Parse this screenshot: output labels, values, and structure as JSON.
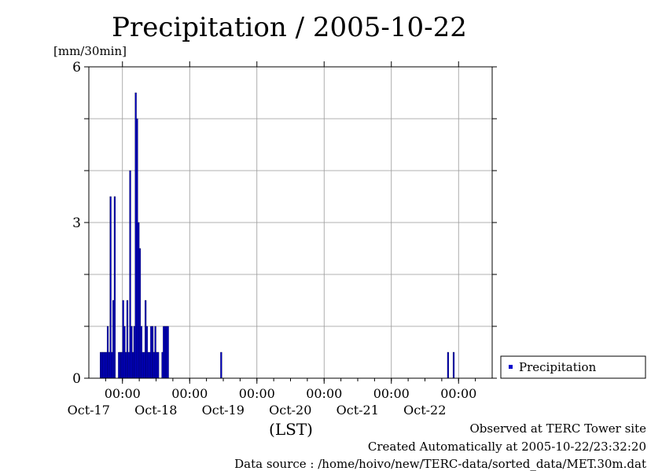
{
  "chart_data": {
    "type": "bar",
    "title": "Precipitation / 2005-10-22",
    "ylabel": "[mm/30min]",
    "xlabel": "(LST)",
    "ylim": [
      0,
      6
    ],
    "yticks": [
      0,
      3,
      6
    ],
    "x_start": "2005-10-16T12:00",
    "x_end": "2005-10-22T12:00",
    "xticks": [
      {
        "time": "2005-10-17T00:00",
        "time_label": "00:00",
        "date_label": "Oct-17"
      },
      {
        "time": "2005-10-18T00:00",
        "time_label": "00:00",
        "date_label": "Oct-18"
      },
      {
        "time": "2005-10-19T00:00",
        "time_label": "00:00",
        "date_label": "Oct-19"
      },
      {
        "time": "2005-10-20T00:00",
        "time_label": "00:00",
        "date_label": "Oct-20"
      },
      {
        "time": "2005-10-21T00:00",
        "time_label": "00:00",
        "date_label": "Oct-21"
      },
      {
        "time": "2005-10-22T00:00",
        "time_label": "00:00",
        "date_label": "Oct-22"
      }
    ],
    "grid": true,
    "legend_position": "right",
    "series": [
      {
        "name": "Precipitation",
        "color": "#0000cc",
        "points": [
          [
            "2005-10-16T16:00",
            0.5
          ],
          [
            "2005-10-16T16:30",
            0.5
          ],
          [
            "2005-10-16T17:00",
            0.5
          ],
          [
            "2005-10-16T17:30",
            0.5
          ],
          [
            "2005-10-16T18:00",
            0.5
          ],
          [
            "2005-10-16T18:30",
            1.0
          ],
          [
            "2005-10-16T19:00",
            0.5
          ],
          [
            "2005-10-16T19:30",
            3.5
          ],
          [
            "2005-10-16T20:00",
            0.5
          ],
          [
            "2005-10-16T20:30",
            1.5
          ],
          [
            "2005-10-16T21:00",
            3.5
          ],
          [
            "2005-10-16T22:30",
            0.5
          ],
          [
            "2005-10-16T23:00",
            0.5
          ],
          [
            "2005-10-16T23:30",
            0.5
          ],
          [
            "2005-10-17T00:00",
            1.5
          ],
          [
            "2005-10-17T00:30",
            1.0
          ],
          [
            "2005-10-17T01:00",
            0.5
          ],
          [
            "2005-10-17T01:30",
            1.5
          ],
          [
            "2005-10-17T02:00",
            0.5
          ],
          [
            "2005-10-17T02:30",
            4.0
          ],
          [
            "2005-10-17T03:00",
            1.0
          ],
          [
            "2005-10-17T03:30",
            0.5
          ],
          [
            "2005-10-17T04:00",
            1.0
          ],
          [
            "2005-10-17T04:30",
            5.5
          ],
          [
            "2005-10-17T05:00",
            5.0
          ],
          [
            "2005-10-17T05:30",
            3.0
          ],
          [
            "2005-10-17T06:00",
            2.5
          ],
          [
            "2005-10-17T06:30",
            1.0
          ],
          [
            "2005-10-17T07:00",
            0.5
          ],
          [
            "2005-10-17T07:30",
            0.5
          ],
          [
            "2005-10-17T08:00",
            1.5
          ],
          [
            "2005-10-17T08:30",
            1.0
          ],
          [
            "2005-10-17T09:00",
            0.5
          ],
          [
            "2005-10-17T09:30",
            0.5
          ],
          [
            "2005-10-17T10:00",
            1.0
          ],
          [
            "2005-10-17T10:30",
            1.0
          ],
          [
            "2005-10-17T11:00",
            0.5
          ],
          [
            "2005-10-17T11:30",
            1.0
          ],
          [
            "2005-10-17T12:00",
            0.5
          ],
          [
            "2005-10-17T12:30",
            0.5
          ],
          [
            "2005-10-17T14:00",
            0.5
          ],
          [
            "2005-10-17T14:30",
            1.0
          ],
          [
            "2005-10-17T15:00",
            1.0
          ],
          [
            "2005-10-17T15:30",
            1.0
          ],
          [
            "2005-10-17T16:00",
            1.0
          ],
          [
            "2005-10-18T11:00",
            0.5
          ],
          [
            "2005-10-21T20:00",
            0.5
          ],
          [
            "2005-10-21T22:00",
            0.5
          ]
        ]
      }
    ]
  },
  "footer": {
    "line1": "Observed at TERC Tower site",
    "line2": "Created Automatically at 2005-10-22/23:32:20",
    "line3": "Data source : /home/hoivo/new/TERC-data/sorted_data/MET.30m.dat"
  }
}
